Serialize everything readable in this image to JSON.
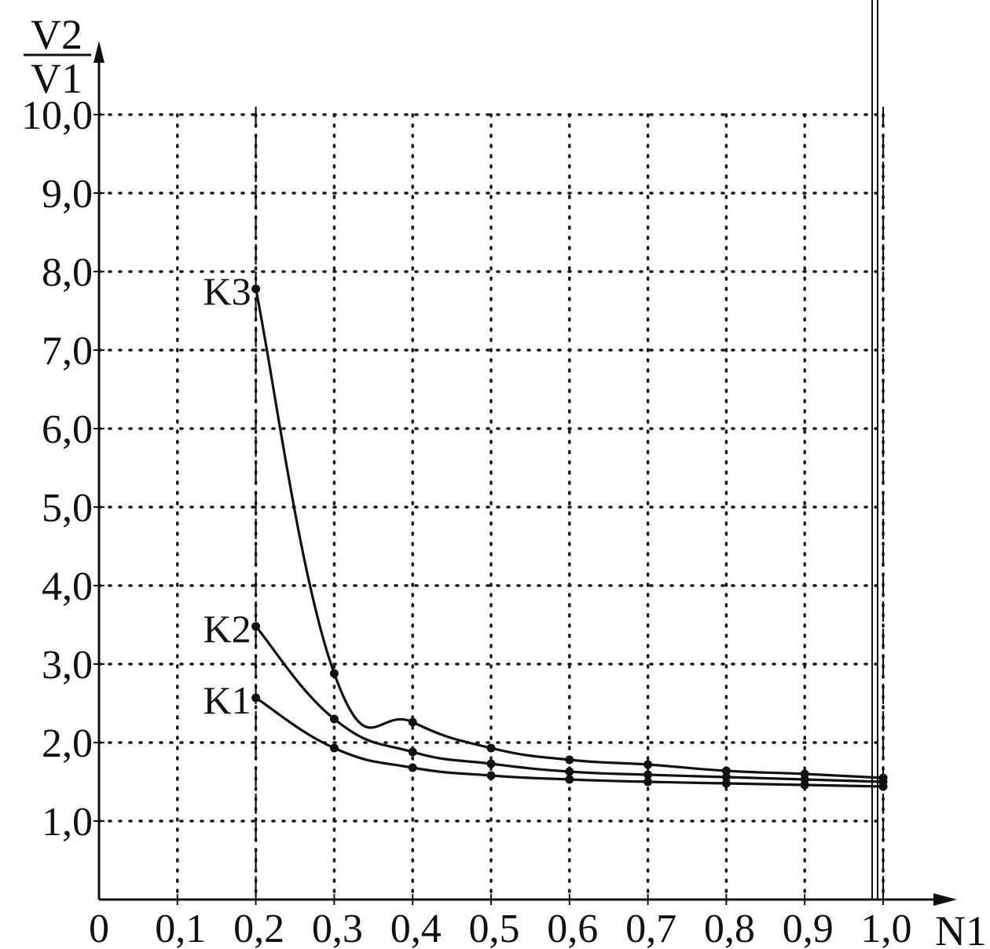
{
  "chart_data": {
    "type": "line",
    "title": "",
    "xlabel": "N1",
    "ylabel": {
      "numerator": "V2",
      "denominator": "V1"
    },
    "xlim": [
      0,
      1.0
    ],
    "ylim": [
      0,
      10.0
    ],
    "grid": true,
    "x_ticks": [
      "0",
      "0,1",
      "0,2",
      "0,3",
      "0,4",
      "0,5",
      "0,6",
      "0,7",
      "0,8",
      "0,9",
      "1,0"
    ],
    "y_ticks": [
      "1,0",
      "2,0",
      "3,0",
      "4,0",
      "5,0",
      "6,0",
      "7,0",
      "8,0",
      "9,0",
      "10,0"
    ],
    "reference_lines_x": [
      0.2,
      1.0
    ],
    "x": [
      0.2,
      0.3,
      0.4,
      0.5,
      0.6,
      0.7,
      0.8,
      0.9,
      1.0
    ],
    "series": [
      {
        "name": "K1",
        "values": [
          2.57,
          1.93,
          1.68,
          1.58,
          1.53,
          1.5,
          1.48,
          1.46,
          1.44
        ]
      },
      {
        "name": "K2",
        "values": [
          3.48,
          2.3,
          1.88,
          1.73,
          1.63,
          1.59,
          1.56,
          1.53,
          1.5
        ]
      },
      {
        "name": "K3",
        "values": [
          7.78,
          2.88,
          2.26,
          1.93,
          1.78,
          1.72,
          1.64,
          1.6,
          1.55
        ]
      }
    ]
  }
}
